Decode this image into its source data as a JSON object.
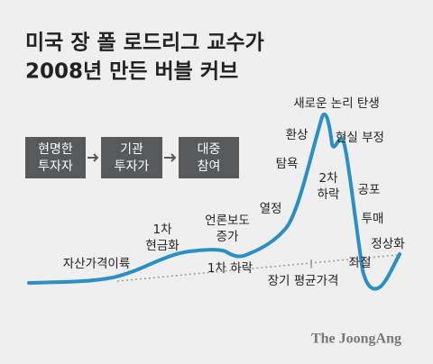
{
  "header": {
    "title": [
      "미국 장 폴 로드리그 교수가",
      "2008년 만든 버블 커브"
    ]
  },
  "flow": [
    [
      "현명한",
      "투자자"
    ],
    [
      "기관",
      "투자가"
    ],
    [
      "대중",
      "참여"
    ]
  ],
  "labels": [
    [
      "자산가격이륙"
    ],
    [
      "1차",
      "현금화"
    ],
    [
      "언론보도",
      "증가"
    ],
    [
      "1차 하락"
    ],
    [
      "열정"
    ],
    [
      "탐욕"
    ],
    [
      "환상"
    ],
    [
      "새로운 논리 탄생"
    ],
    [
      "현실 부정"
    ],
    [
      "2차",
      "하락"
    ],
    [
      "공포"
    ],
    [
      "투매"
    ],
    [
      "정상화"
    ],
    [
      "좌절"
    ],
    [
      "장기 평균가격"
    ]
  ],
  "source": "The JoongAng"
}
